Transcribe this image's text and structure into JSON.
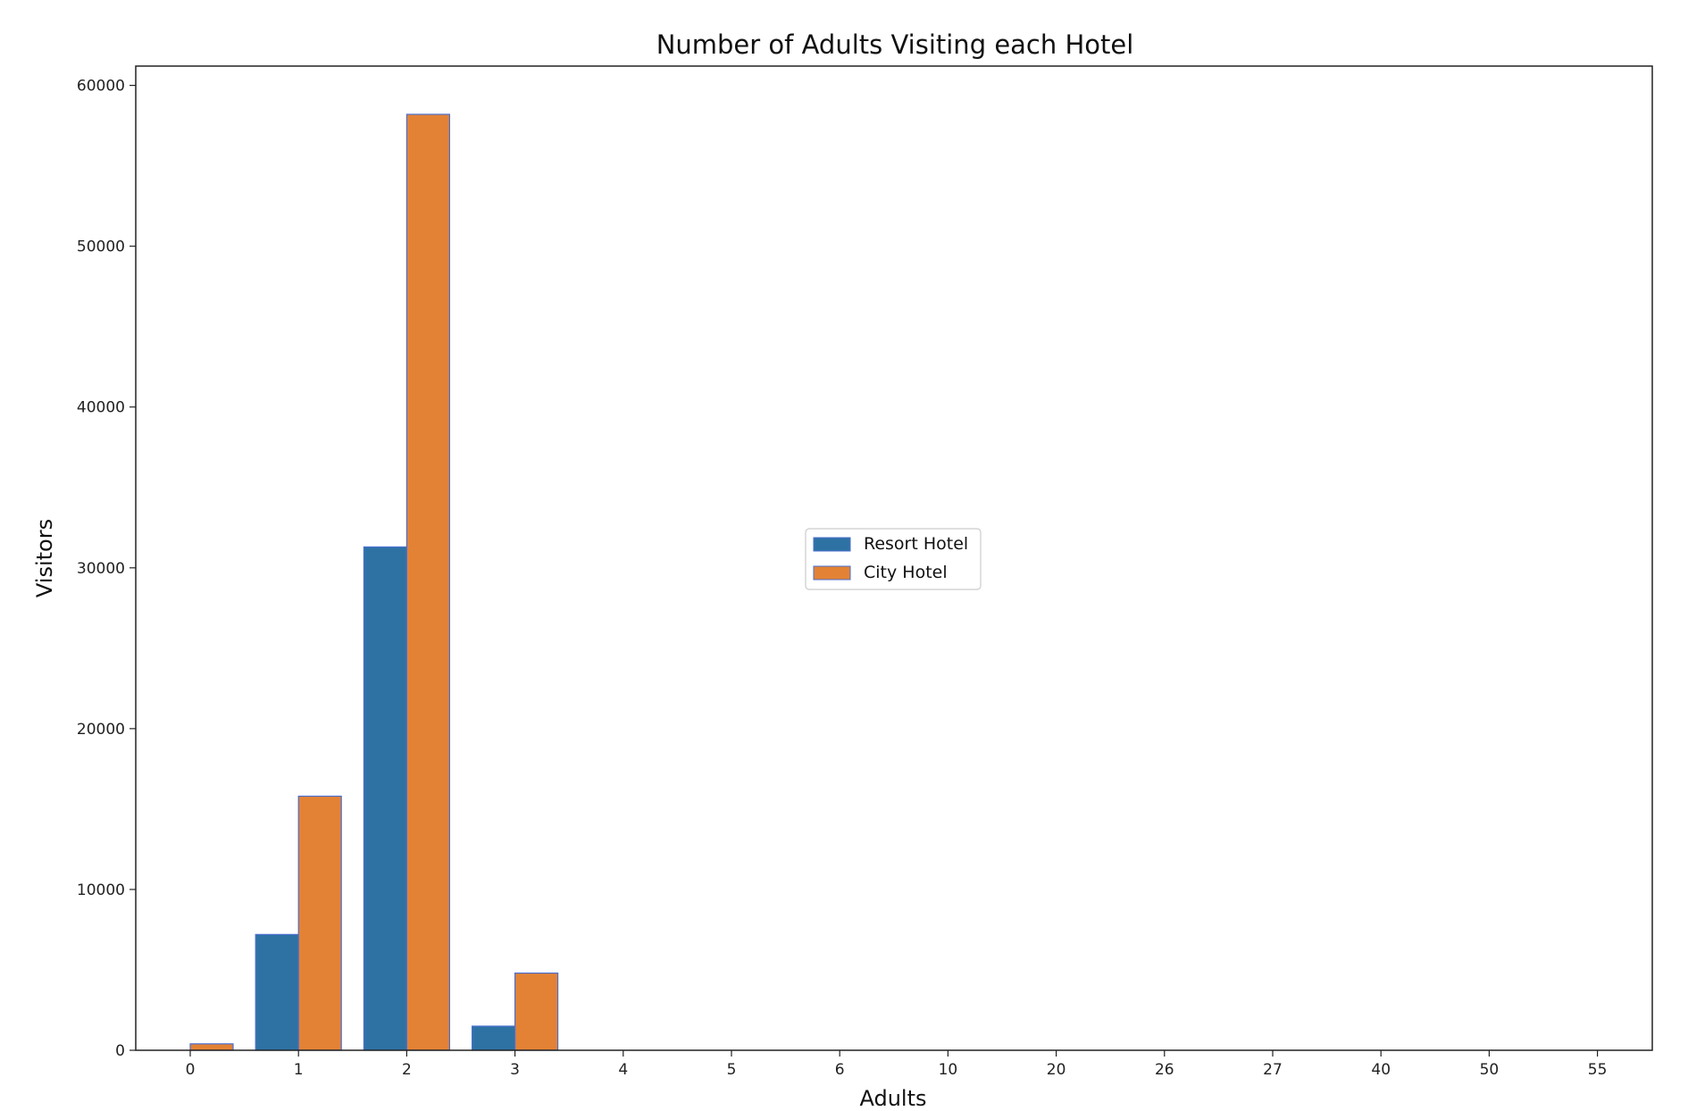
{
  "chart_data": {
    "type": "bar",
    "title": "Number of Adults Visiting each Hotel",
    "xlabel": "Adults",
    "ylabel": "Visitors",
    "categories": [
      "0",
      "1",
      "2",
      "3",
      "4",
      "5",
      "6",
      "10",
      "20",
      "26",
      "27",
      "40",
      "50",
      "55"
    ],
    "series": [
      {
        "name": "Resort Hotel",
        "color": "#2e72a4",
        "values": [
          0,
          7200,
          31300,
          1500,
          0,
          0,
          0,
          0,
          0,
          0,
          0,
          0,
          0,
          0
        ]
      },
      {
        "name": "City Hotel",
        "color": "#e38235",
        "values": [
          400,
          15800,
          58200,
          4800,
          0,
          0,
          0,
          0,
          0,
          0,
          0,
          0,
          0,
          0
        ]
      }
    ],
    "bar_edge_color": "#4a6fd1",
    "ylim": [
      0,
      61200
    ],
    "yticks": [
      0,
      10000,
      20000,
      30000,
      40000,
      50000,
      60000
    ],
    "grid": false,
    "legend_position": "center"
  }
}
